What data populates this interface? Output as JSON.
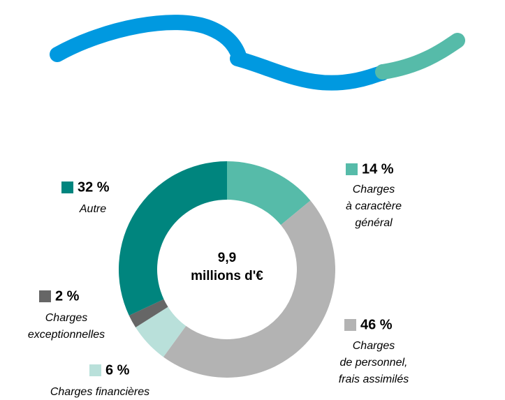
{
  "chart_data": {
    "type": "donut",
    "center_text": [
      "9,9",
      "millions d'€"
    ],
    "categories": [
      [
        "Charges",
        "à caractère",
        "général"
      ],
      [
        "Charges",
        "de personnel,",
        "frais assimilés"
      ],
      [
        "Charges financières"
      ],
      [
        "Charges",
        "exceptionnelles"
      ],
      [
        "Autre"
      ]
    ],
    "values": [
      14,
      46,
      6,
      2,
      32
    ],
    "value_labels": [
      "14 %",
      "46 %",
      "6 %",
      "2 %",
      "32 %"
    ],
    "colors": [
      "#56bba9",
      "#b3b3b3",
      "#b9e0da",
      "#666666",
      "#00857e"
    ]
  }
}
